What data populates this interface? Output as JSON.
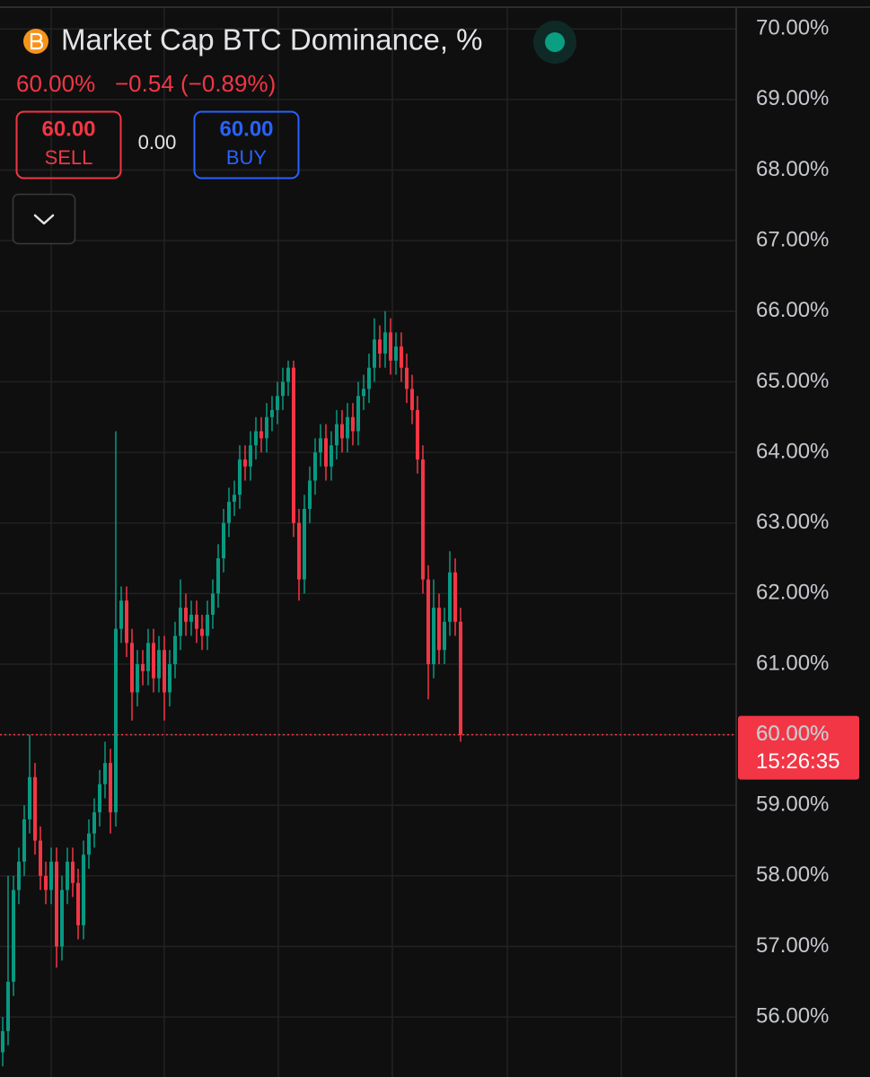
{
  "header": {
    "title": "Market Cap BTC Dominance, %",
    "price": "60.00%",
    "change": "−0.54 (−0.89%)"
  },
  "trade": {
    "sell_price": "60.00",
    "sell_label": "SELL",
    "spread": "0.00",
    "buy_price": "60.00",
    "buy_label": "BUY"
  },
  "chart_data": {
    "type": "candlestick",
    "open": [
      55.5,
      55.8,
      56.5,
      57.8,
      58.2,
      58.8,
      59.4,
      58.5,
      58.0,
      57.8,
      58.2,
      57.0,
      57.8,
      58.2,
      57.9,
      57.3,
      58.3,
      58.6,
      58.9,
      59.3,
      59.6,
      58.9,
      61.5,
      61.9,
      61.3,
      60.6,
      61.0,
      60.9,
      61.3,
      60.8,
      61.2,
      60.6,
      61.0,
      61.4,
      61.8,
      61.6,
      61.7,
      61.5,
      61.4,
      61.7,
      62.0,
      62.5,
      63.0,
      63.3,
      63.4,
      63.9,
      63.8,
      64.1,
      64.3,
      64.2,
      64.5,
      64.6,
      64.8,
      65.0,
      65.2,
      63.0,
      62.2,
      63.2,
      63.6,
      64.0,
      64.2,
      63.8,
      64.1,
      64.4,
      64.2,
      64.5,
      64.3,
      64.8,
      64.9,
      65.2,
      65.6,
      65.4,
      65.7,
      65.3,
      65.5,
      65.2,
      64.9,
      64.6,
      63.9,
      62.2,
      61.0,
      61.8,
      61.2,
      61.6,
      62.3,
      61.6
    ],
    "high": [
      56.0,
      58.0,
      58.0,
      58.4,
      59.0,
      60.0,
      59.6,
      58.7,
      58.2,
      58.4,
      58.4,
      58.0,
      58.4,
      58.4,
      58.1,
      58.5,
      58.8,
      59.1,
      59.5,
      59.9,
      59.8,
      64.3,
      62.1,
      62.1,
      61.5,
      61.2,
      61.2,
      61.5,
      61.5,
      61.4,
      61.4,
      61.2,
      61.6,
      62.2,
      62.0,
      61.9,
      61.9,
      61.7,
      61.9,
      62.2,
      62.7,
      63.2,
      63.5,
      63.6,
      64.1,
      64.1,
      64.3,
      64.5,
      64.5,
      64.7,
      64.8,
      65.0,
      65.2,
      65.3,
      65.3,
      63.2,
      63.4,
      63.8,
      64.2,
      64.4,
      64.4,
      64.3,
      64.6,
      64.6,
      64.7,
      64.7,
      65.0,
      65.1,
      65.4,
      65.9,
      65.8,
      66.0,
      65.9,
      65.7,
      65.7,
      65.4,
      65.1,
      64.8,
      64.1,
      62.4,
      62.2,
      62.0,
      61.8,
      62.6,
      62.5,
      61.8
    ],
    "low": [
      55.3,
      55.6,
      56.3,
      57.6,
      58.0,
      58.6,
      58.3,
      57.8,
      57.6,
      57.6,
      56.7,
      56.8,
      57.6,
      57.7,
      57.1,
      57.1,
      58.1,
      58.4,
      58.7,
      59.1,
      58.6,
      58.7,
      61.3,
      61.1,
      60.2,
      60.4,
      60.7,
      60.7,
      60.6,
      60.6,
      60.2,
      60.4,
      60.8,
      61.2,
      61.4,
      61.4,
      61.3,
      61.2,
      61.2,
      61.5,
      61.8,
      62.3,
      62.8,
      63.1,
      63.2,
      63.6,
      63.6,
      63.9,
      64.0,
      64.0,
      64.3,
      64.4,
      64.6,
      64.8,
      62.8,
      61.9,
      62.0,
      63.0,
      63.4,
      63.8,
      63.6,
      63.6,
      63.9,
      64.0,
      64.0,
      64.1,
      64.1,
      64.6,
      64.7,
      65.0,
      65.2,
      65.2,
      65.1,
      65.1,
      65.0,
      64.7,
      64.4,
      63.7,
      62.0,
      60.5,
      60.8,
      61.0,
      61.0,
      61.4,
      61.4,
      59.9
    ],
    "close": [
      55.8,
      56.5,
      57.8,
      58.2,
      58.8,
      59.4,
      58.5,
      58.0,
      57.8,
      58.2,
      57.0,
      57.8,
      58.2,
      57.9,
      57.3,
      58.3,
      58.6,
      58.9,
      59.3,
      59.6,
      58.9,
      61.5,
      61.9,
      61.3,
      60.6,
      61.0,
      60.9,
      61.3,
      60.8,
      61.2,
      60.6,
      61.0,
      61.4,
      61.8,
      61.6,
      61.7,
      61.5,
      61.4,
      61.7,
      62.0,
      62.5,
      63.0,
      63.3,
      63.4,
      63.9,
      63.8,
      64.1,
      64.3,
      64.2,
      64.5,
      64.6,
      64.8,
      65.0,
      65.2,
      63.0,
      62.2,
      63.2,
      63.6,
      64.0,
      64.2,
      63.8,
      64.1,
      64.4,
      64.2,
      64.5,
      64.3,
      64.8,
      64.9,
      65.2,
      65.6,
      65.4,
      65.7,
      65.3,
      65.5,
      65.2,
      64.9,
      64.6,
      63.9,
      62.2,
      61.0,
      61.8,
      61.2,
      61.6,
      62.3,
      61.6,
      60.0
    ],
    "up_color": "#089981",
    "down_color": "#f23645",
    "ylim": [
      55.15,
      70.41
    ],
    "yticks": [
      {
        "value": 56,
        "label": "56.00%"
      },
      {
        "value": 57,
        "label": "57.00%"
      },
      {
        "value": 58,
        "label": "58.00%"
      },
      {
        "value": 59,
        "label": "59.00%"
      },
      {
        "value": 60,
        "label": "60.00%"
      },
      {
        "value": 61,
        "label": "61.00%"
      },
      {
        "value": 62,
        "label": "62.00%"
      },
      {
        "value": 63,
        "label": "63.00%"
      },
      {
        "value": 64,
        "label": "64.00%"
      },
      {
        "value": 65,
        "label": "65.00%"
      },
      {
        "value": 66,
        "label": "66.00%"
      },
      {
        "value": 67,
        "label": "67.00%"
      },
      {
        "value": 68,
        "label": "68.00%"
      },
      {
        "value": 69,
        "label": "69.00%"
      },
      {
        "value": 70,
        "label": "70.00%"
      }
    ],
    "grid": true,
    "last_price": {
      "value": 60,
      "label": "60.00%"
    },
    "countdown": "15:26:35"
  }
}
